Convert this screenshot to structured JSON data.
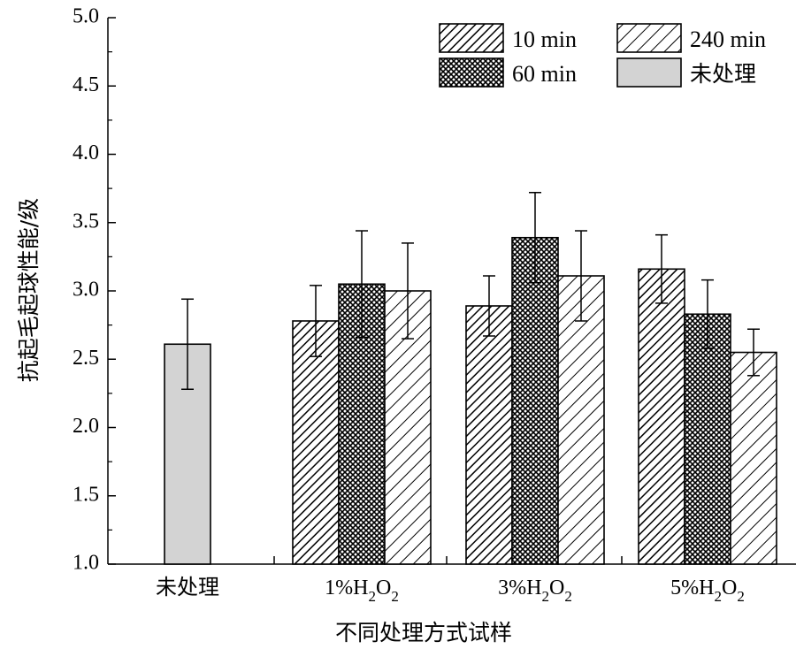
{
  "chart_data": {
    "type": "bar",
    "title": "",
    "xlabel": "不同处理方式试样",
    "ylabel": "抗起毛起球性能/级",
    "ylim": [
      1.0,
      5.0
    ],
    "yticks": [
      "1.0",
      "1.5",
      "2.0",
      "2.5",
      "3.0",
      "3.5",
      "4.0",
      "4.5",
      "5.0"
    ],
    "legend_position": "top-right",
    "groups": [
      {
        "label": "未处理",
        "label_main": "未处理",
        "label_sub1": "",
        "label_mid": "",
        "label_sub2": "",
        "bars": [
          {
            "series": "未处理",
            "value": 2.61,
            "error": 0.33
          }
        ]
      },
      {
        "label": "1%H2O2",
        "label_main": "1%H",
        "label_sub1": "2",
        "label_mid": "O",
        "label_sub2": "2",
        "bars": [
          {
            "series": "10 min",
            "value": 2.78,
            "error": 0.26
          },
          {
            "series": "60 min",
            "value": 3.05,
            "error": 0.39
          },
          {
            "series": "240 min",
            "value": 3.0,
            "error": 0.35
          }
        ]
      },
      {
        "label": "3%H2O2",
        "label_main": "3%H",
        "label_sub1": "2",
        "label_mid": "O",
        "label_sub2": "2",
        "bars": [
          {
            "series": "10 min",
            "value": 2.89,
            "error": 0.22
          },
          {
            "series": "60 min",
            "value": 3.39,
            "error": 0.33
          },
          {
            "series": "240 min",
            "value": 3.11,
            "error": 0.33
          }
        ]
      },
      {
        "label": "5%H2O2",
        "label_main": "5%H",
        "label_sub1": "2",
        "label_mid": "O",
        "label_sub2": "2",
        "bars": [
          {
            "series": "10 min",
            "value": 3.16,
            "error": 0.25
          },
          {
            "series": "60 min",
            "value": 2.83,
            "error": 0.25
          },
          {
            "series": "240 min",
            "value": 2.55,
            "error": 0.17
          }
        ]
      }
    ],
    "legend": [
      {
        "name": "10 min",
        "pattern": "hatch-dense"
      },
      {
        "name": "240 min",
        "pattern": "hatch-sparse"
      },
      {
        "name": "60 min",
        "pattern": "crosshatch"
      },
      {
        "name": "未处理",
        "pattern": "solid-gray"
      }
    ],
    "colors": {
      "untreated_fill": "#d3d3d3",
      "stroke": "#000000"
    }
  }
}
